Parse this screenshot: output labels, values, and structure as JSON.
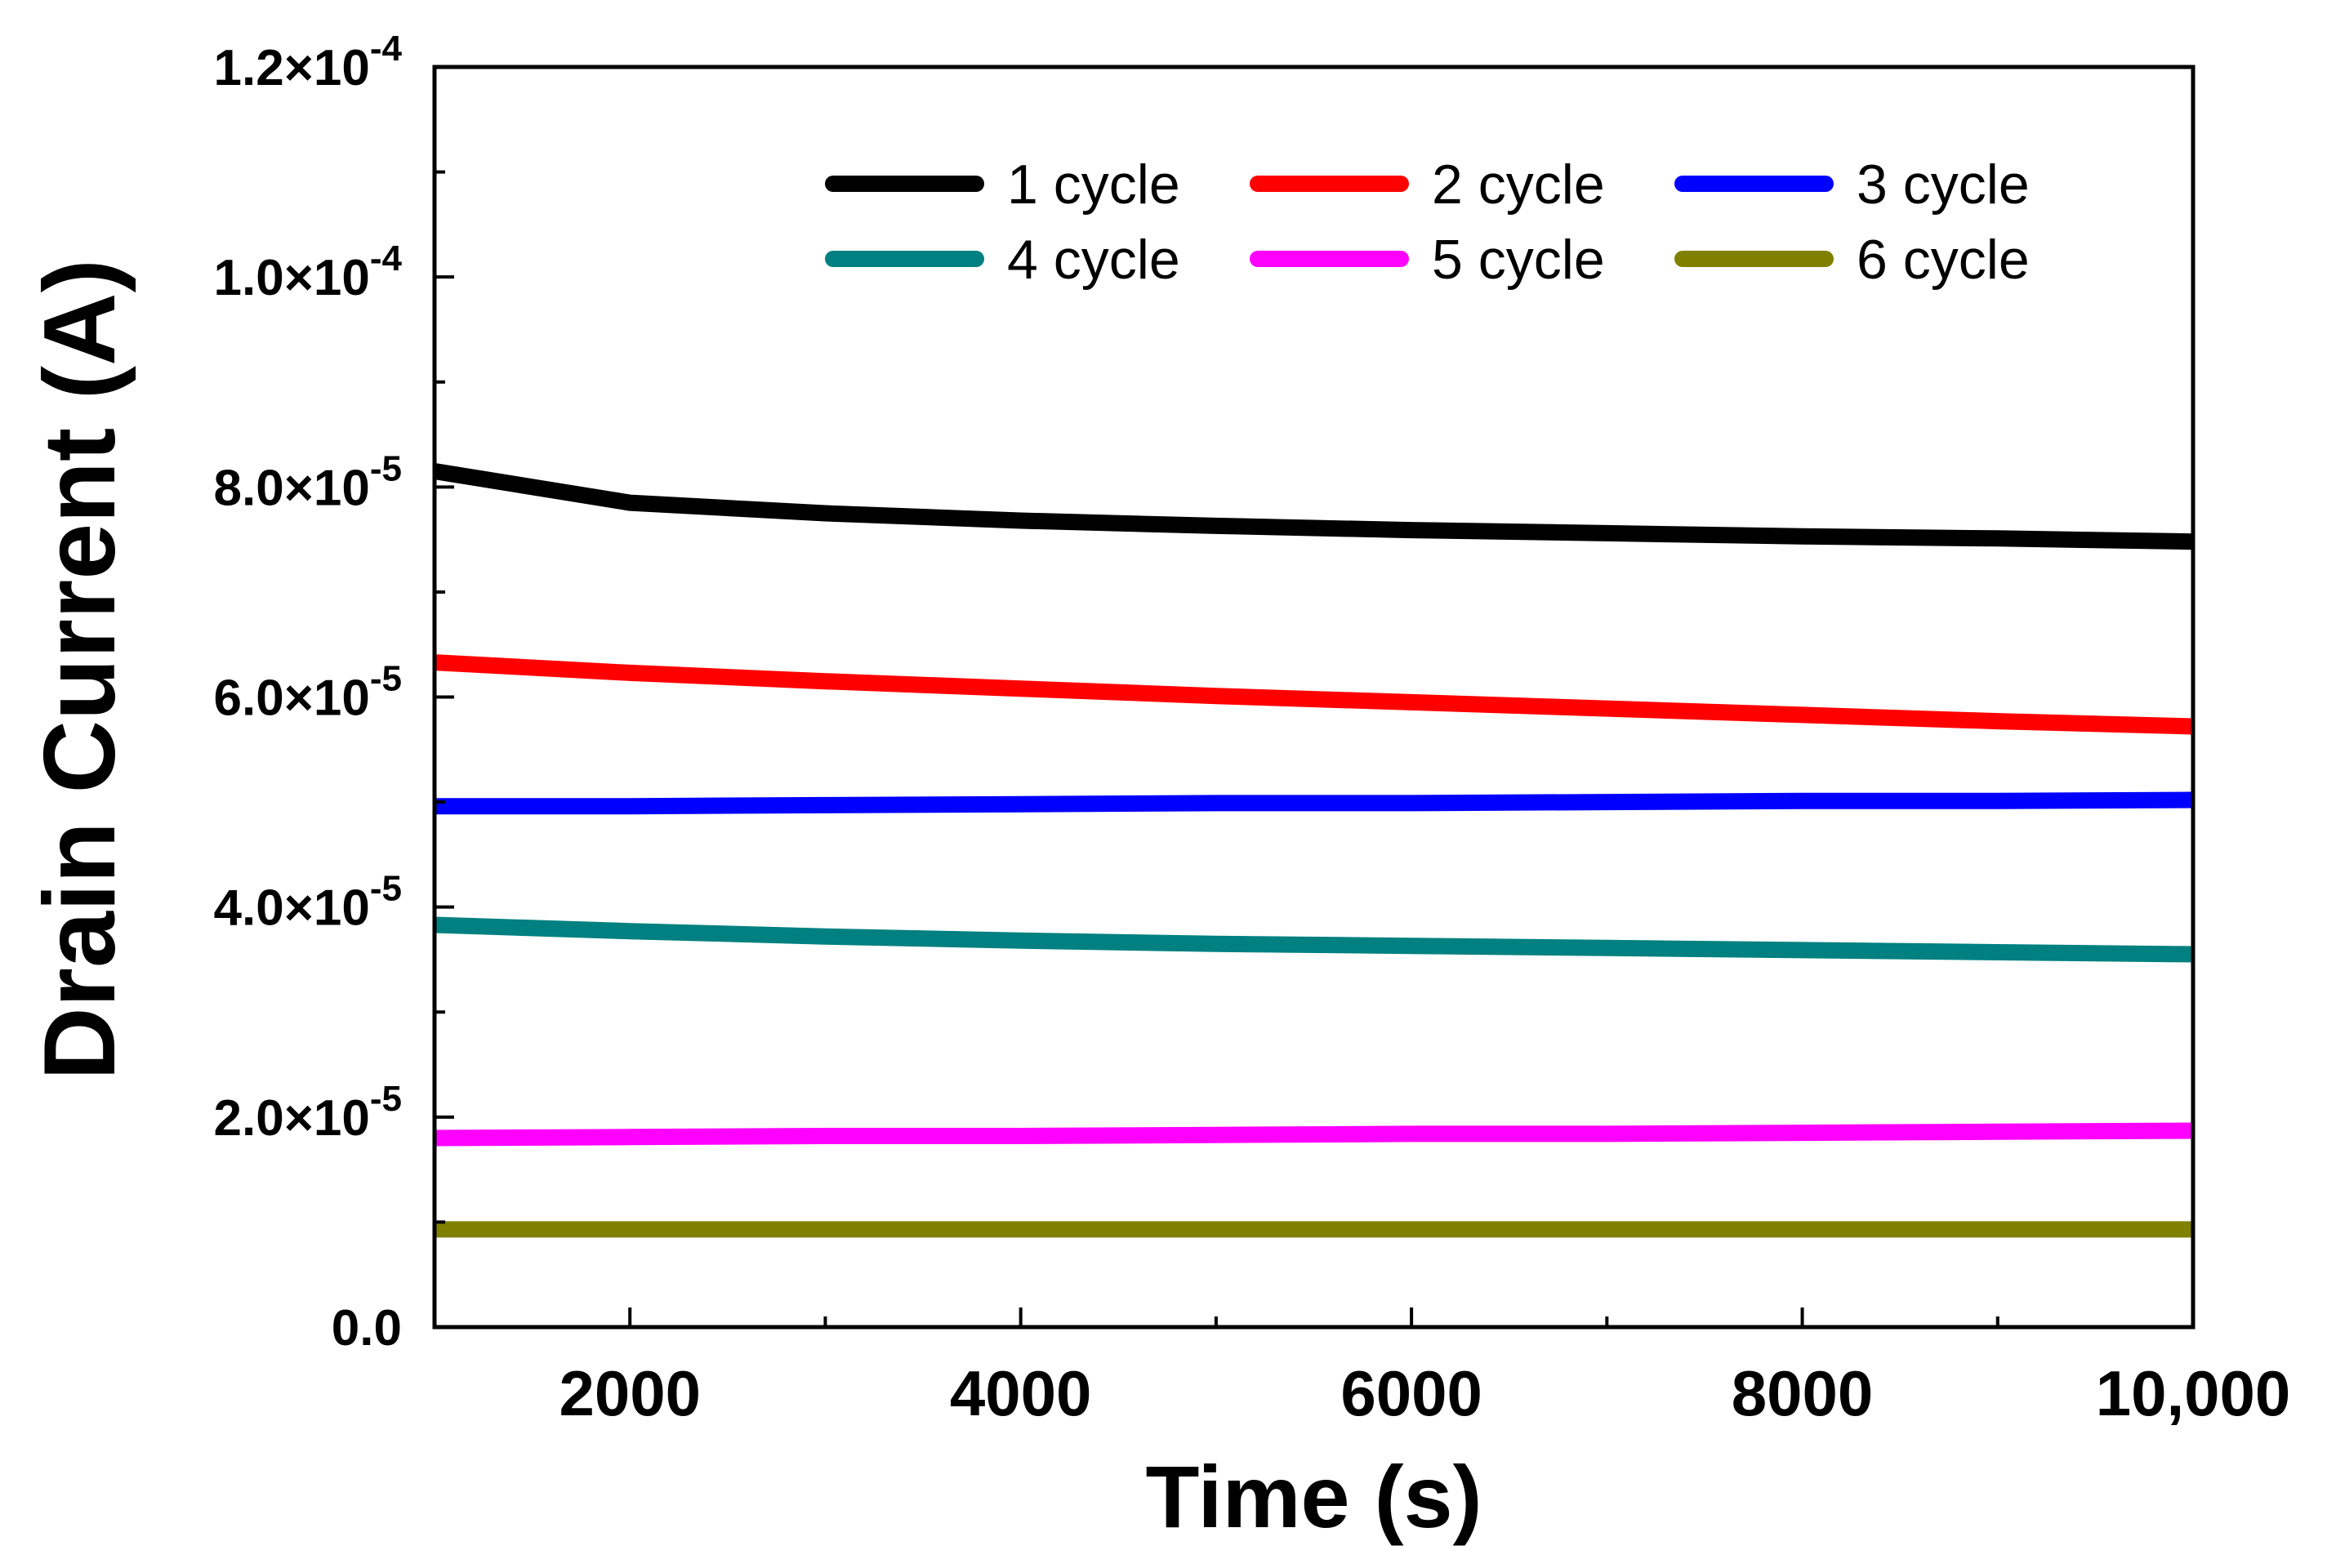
{
  "chart_data": {
    "type": "line",
    "title": "",
    "xlabel": "Time (s)",
    "ylabel": "Drain Current (A)",
    "xlim": [
      1000,
      10000
    ],
    "ylim": [
      0,
      0.00012
    ],
    "x_ticks": [
      {
        "value": 2000,
        "label": "2000"
      },
      {
        "value": 4000,
        "label": "4000"
      },
      {
        "value": 6000,
        "label": "6000"
      },
      {
        "value": 8000,
        "label": "8000"
      },
      {
        "value": 10000,
        "label": "10,000"
      }
    ],
    "y_ticks": [
      {
        "value": 0,
        "label": "0.0",
        "exp": ""
      },
      {
        "value": 2e-05,
        "label": "2.0×10",
        "exp": "-5"
      },
      {
        "value": 4e-05,
        "label": "4.0×10",
        "exp": "-5"
      },
      {
        "value": 6e-05,
        "label": "6.0×10",
        "exp": "-5"
      },
      {
        "value": 8e-05,
        "label": "8.0×10",
        "exp": "-5"
      },
      {
        "value": 0.0001,
        "label": "1.0×10",
        "exp": "-4"
      },
      {
        "value": 0.00012,
        "label": "1.2×10",
        "exp": "-4"
      }
    ],
    "legend_placement": "top-right",
    "x": [
      1000,
      2000,
      3000,
      4000,
      5000,
      6000,
      7000,
      8000,
      9000,
      10000
    ],
    "series": [
      {
        "name": "1 cycle",
        "color": "#000000",
        "values": [
          8.15e-05,
          7.85e-05,
          7.75e-05,
          7.68e-05,
          7.63e-05,
          7.59e-05,
          7.56e-05,
          7.53e-05,
          7.51e-05,
          7.48e-05
        ]
      },
      {
        "name": "2 cycle",
        "color": "#ff0000",
        "values": [
          6.33e-05,
          6.23e-05,
          6.15e-05,
          6.08e-05,
          6.01e-05,
          5.95e-05,
          5.89e-05,
          5.83e-05,
          5.77e-05,
          5.72e-05
        ]
      },
      {
        "name": "3 cycle",
        "color": "#0000ff",
        "values": [
          4.96e-05,
          4.96e-05,
          4.97e-05,
          4.98e-05,
          4.99e-05,
          4.99e-05,
          5e-05,
          5.01e-05,
          5.01e-05,
          5.02e-05
        ]
      },
      {
        "name": "4 cycle",
        "color": "#008080",
        "values": [
          3.83e-05,
          3.77e-05,
          3.72e-05,
          3.68e-05,
          3.65e-05,
          3.63e-05,
          3.61e-05,
          3.59e-05,
          3.57e-05,
          3.55e-05
        ]
      },
      {
        "name": "5 cycle",
        "color": "#ff00ff",
        "values": [
          1.8e-05,
          1.81e-05,
          1.82e-05,
          1.82e-05,
          1.83e-05,
          1.84e-05,
          1.84e-05,
          1.85e-05,
          1.86e-05,
          1.87e-05
        ]
      },
      {
        "name": "6 cycle",
        "color": "#808000",
        "values": [
          9.3e-06,
          9.3e-06,
          9.3e-06,
          9.3e-06,
          9.3e-06,
          9.3e-06,
          9.3e-06,
          9.3e-06,
          9.3e-06,
          9.3e-06
        ]
      }
    ]
  }
}
